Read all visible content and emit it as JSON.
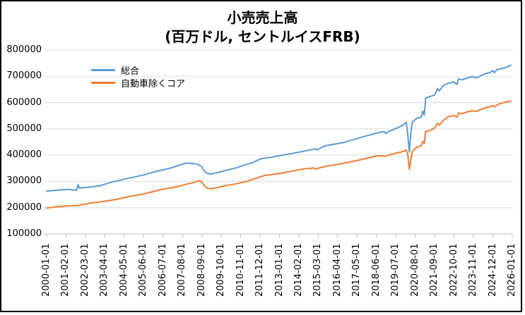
{
  "figure": {
    "title_line1": "小売売上高",
    "title_line2": "(百万ドル, セントルイスFRB)",
    "background_color": "#ffffff",
    "border_color": "#000000",
    "gridline_color": "#dcdcdc",
    "tick_color": "#c0c0c0"
  },
  "chart_data": {
    "type": "line",
    "title": "小売売上高 (百万ドル, セントルイスFRB)",
    "grid": "horizontal",
    "y_axis": {
      "min": 100000,
      "max": 800000,
      "tick_step": 100000,
      "ticks": [
        800000,
        700000,
        600000,
        500000,
        400000,
        300000,
        200000,
        100000
      ]
    },
    "x_axis": {
      "start": "2000-01",
      "end": "2026-01",
      "tick_interval_months": 13,
      "tick_labels": [
        "2000-01-01",
        "2001-02-01",
        "2002-03-01",
        "2003-04-01",
        "2004-05-01",
        "2005-06-01",
        "2006-07-01",
        "2007-08-01",
        "2008-09-01",
        "2009-10-01",
        "2010-11-01",
        "2011-12-01",
        "2013-01-01",
        "2014-02-01",
        "2015-03-01",
        "2016-04-01",
        "2017-05-01",
        "2018-06-01",
        "2019-07-01",
        "2020-08-01",
        "2021-09-01",
        "2022-10-01",
        "2023-11-01",
        "2024-12-01",
        "2026-01-01"
      ]
    },
    "legend": {
      "position": "upper-left",
      "frame": false,
      "entries": [
        {
          "label": "総合",
          "color": "#5b9bd5"
        },
        {
          "label": "自動車除くコア",
          "color": "#ed7d31"
        }
      ]
    },
    "series": [
      {
        "name": "総合",
        "color": "#5b9bd5",
        "points": [
          [
            "2000-01",
            263000
          ],
          [
            "2000-07",
            266000
          ],
          [
            "2001-03",
            270000
          ],
          [
            "2001-09",
            266000
          ],
          [
            "2001-10",
            288000
          ],
          [
            "2001-11",
            274000
          ],
          [
            "2002-01",
            276000
          ],
          [
            "2002-07",
            279000
          ],
          [
            "2003-01",
            284000
          ],
          [
            "2003-07",
            295000
          ],
          [
            "2004-01",
            303000
          ],
          [
            "2004-07",
            311000
          ],
          [
            "2005-01",
            318000
          ],
          [
            "2005-07",
            326000
          ],
          [
            "2006-01",
            336000
          ],
          [
            "2006-07",
            344000
          ],
          [
            "2007-01",
            352000
          ],
          [
            "2007-06",
            362000
          ],
          [
            "2007-11",
            370000
          ],
          [
            "2008-03",
            368000
          ],
          [
            "2008-06",
            366000
          ],
          [
            "2008-09",
            356000
          ],
          [
            "2008-10",
            344000
          ],
          [
            "2008-12",
            332000
          ],
          [
            "2009-03",
            328000
          ],
          [
            "2009-09",
            336000
          ],
          [
            "2010-01",
            342000
          ],
          [
            "2010-07",
            350000
          ],
          [
            "2011-01",
            361000
          ],
          [
            "2011-07",
            372000
          ],
          [
            "2012-01",
            387000
          ],
          [
            "2012-07",
            391000
          ],
          [
            "2013-01",
            398000
          ],
          [
            "2013-07",
            404000
          ],
          [
            "2014-01",
            410000
          ],
          [
            "2014-07",
            417000
          ],
          [
            "2015-01",
            424000
          ],
          [
            "2015-02",
            420000
          ],
          [
            "2015-07",
            435000
          ],
          [
            "2016-01",
            441000
          ],
          [
            "2016-07",
            447000
          ],
          [
            "2017-01",
            456000
          ],
          [
            "2017-07",
            467000
          ],
          [
            "2018-01",
            476000
          ],
          [
            "2018-07",
            485000
          ],
          [
            "2018-11",
            490000
          ],
          [
            "2018-12",
            483000
          ],
          [
            "2019-03",
            492000
          ],
          [
            "2019-08",
            504000
          ],
          [
            "2019-12",
            515000
          ],
          [
            "2020-02",
            525000
          ],
          [
            "2020-03",
            478000
          ],
          [
            "2020-04",
            412000
          ],
          [
            "2020-05",
            485000
          ],
          [
            "2020-06",
            525000
          ],
          [
            "2020-09",
            540000
          ],
          [
            "2020-12",
            545000
          ],
          [
            "2021-01",
            568000
          ],
          [
            "2021-02",
            552000
          ],
          [
            "2021-03",
            618000
          ],
          [
            "2021-04",
            620000
          ],
          [
            "2021-07",
            625000
          ],
          [
            "2021-09",
            630000
          ],
          [
            "2021-11",
            654000
          ],
          [
            "2021-12",
            644000
          ],
          [
            "2022-03",
            666000
          ],
          [
            "2022-06",
            673000
          ],
          [
            "2022-10",
            679000
          ],
          [
            "2022-11",
            672000
          ],
          [
            "2022-12",
            669000
          ],
          [
            "2023-01",
            691000
          ],
          [
            "2023-03",
            686000
          ],
          [
            "2023-07",
            694000
          ],
          [
            "2023-10",
            699000
          ],
          [
            "2024-01",
            694000
          ],
          [
            "2024-04",
            703000
          ],
          [
            "2024-07",
            710000
          ],
          [
            "2024-10",
            714000
          ],
          [
            "2024-12",
            722000
          ],
          [
            "2025-01",
            714000
          ],
          [
            "2025-03",
            727000
          ],
          [
            "2025-06",
            729000
          ],
          [
            "2025-09",
            735000
          ],
          [
            "2025-12",
            742000
          ]
        ]
      },
      {
        "name": "自動車除くコア",
        "color": "#ed7d31",
        "points": [
          [
            "2000-01",
            199000
          ],
          [
            "2000-07",
            203000
          ],
          [
            "2001-03",
            207000
          ],
          [
            "2001-09",
            208000
          ],
          [
            "2001-12",
            211000
          ],
          [
            "2002-07",
            218000
          ],
          [
            "2003-01",
            222000
          ],
          [
            "2003-07",
            227000
          ],
          [
            "2004-01",
            233000
          ],
          [
            "2004-07",
            241000
          ],
          [
            "2005-01",
            247000
          ],
          [
            "2005-07",
            254000
          ],
          [
            "2006-01",
            262000
          ],
          [
            "2006-07",
            271000
          ],
          [
            "2007-01",
            276000
          ],
          [
            "2007-06",
            282000
          ],
          [
            "2007-11",
            290000
          ],
          [
            "2008-03",
            295000
          ],
          [
            "2008-07",
            303000
          ],
          [
            "2008-09",
            298000
          ],
          [
            "2008-10",
            288000
          ],
          [
            "2008-12",
            276000
          ],
          [
            "2009-03",
            271000
          ],
          [
            "2009-09",
            279000
          ],
          [
            "2010-01",
            284000
          ],
          [
            "2010-07",
            290000
          ],
          [
            "2011-03",
            300000
          ],
          [
            "2011-09",
            311000
          ],
          [
            "2012-03",
            323000
          ],
          [
            "2012-09",
            327000
          ],
          [
            "2013-03",
            332000
          ],
          [
            "2013-12",
            342000
          ],
          [
            "2014-06",
            348000
          ],
          [
            "2014-12",
            351000
          ],
          [
            "2015-01",
            347000
          ],
          [
            "2015-07",
            356000
          ],
          [
            "2016-01",
            362000
          ],
          [
            "2016-07",
            368000
          ],
          [
            "2017-01",
            375000
          ],
          [
            "2017-07",
            382000
          ],
          [
            "2018-01",
            390000
          ],
          [
            "2018-07",
            398000
          ],
          [
            "2018-12",
            396000
          ],
          [
            "2019-06",
            406000
          ],
          [
            "2019-12",
            414000
          ],
          [
            "2020-02",
            420000
          ],
          [
            "2020-03",
            402000
          ],
          [
            "2020-04",
            346000
          ],
          [
            "2020-05",
            381000
          ],
          [
            "2020-06",
            414000
          ],
          [
            "2020-09",
            430000
          ],
          [
            "2020-12",
            436000
          ],
          [
            "2021-01",
            452000
          ],
          [
            "2021-02",
            444000
          ],
          [
            "2021-03",
            492000
          ],
          [
            "2021-04",
            490000
          ],
          [
            "2021-07",
            497000
          ],
          [
            "2021-09",
            504000
          ],
          [
            "2021-11",
            521000
          ],
          [
            "2021-12",
            514000
          ],
          [
            "2022-03",
            533000
          ],
          [
            "2022-06",
            546000
          ],
          [
            "2022-10",
            551000
          ],
          [
            "2022-12",
            544000
          ],
          [
            "2023-01",
            561000
          ],
          [
            "2023-03",
            557000
          ],
          [
            "2023-07",
            565000
          ],
          [
            "2023-10",
            569000
          ],
          [
            "2024-01",
            566000
          ],
          [
            "2024-04",
            574000
          ],
          [
            "2024-07",
            580000
          ],
          [
            "2024-10",
            584000
          ],
          [
            "2024-12",
            589000
          ],
          [
            "2025-01",
            583000
          ],
          [
            "2025-03",
            592000
          ],
          [
            "2025-06",
            598000
          ],
          [
            "2025-09",
            602000
          ],
          [
            "2025-12",
            606000
          ]
        ]
      }
    ]
  }
}
